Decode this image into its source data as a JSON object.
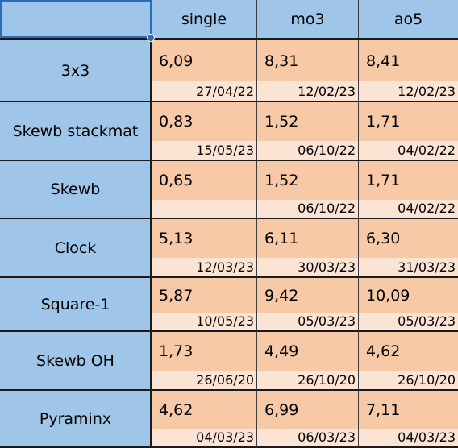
{
  "columns": [
    "single",
    "mo3",
    "ao5"
  ],
  "rows": [
    {
      "event": "3x3",
      "values": [
        "6,09",
        "8,31",
        "8,41"
      ],
      "dates": [
        "27/04/22",
        "12/02/23",
        "12/02/23"
      ]
    },
    {
      "event": "Skewb stackmat",
      "values": [
        "0,83",
        "1,52",
        "1,71"
      ],
      "dates": [
        "15/05/23",
        "06/10/22",
        "04/02/22"
      ]
    },
    {
      "event": "Skewb",
      "values": [
        "0,65",
        "1,52",
        "1,71"
      ],
      "dates": [
        "",
        "06/10/22",
        "04/02/22"
      ]
    },
    {
      "event": "Clock",
      "values": [
        "5,13",
        "6,11",
        "6,30"
      ],
      "dates": [
        "12/03/23",
        "30/03/23",
        "31/03/23"
      ]
    },
    {
      "event": "Square-1",
      "values": [
        "5,87",
        "9,42",
        "10,09"
      ],
      "dates": [
        "10/05/23",
        "05/03/23",
        "05/03/23"
      ]
    },
    {
      "event": "Skewb OH",
      "values": [
        "1,73",
        "4,49",
        "4,62"
      ],
      "dates": [
        "26/06/20",
        "26/10/20",
        "26/10/20"
      ]
    },
    {
      "event": "Pyraminx",
      "values": [
        "4,62",
        "6,99",
        "7,11"
      ],
      "dates": [
        "04/03/23",
        "06/03/23",
        "04/03/23"
      ]
    }
  ],
  "colors": {
    "header_bg": "#9fc5e8",
    "value_bg": "#f8c9a7",
    "date_bg": "#fce4d4",
    "selection": "#2a6ebb"
  }
}
